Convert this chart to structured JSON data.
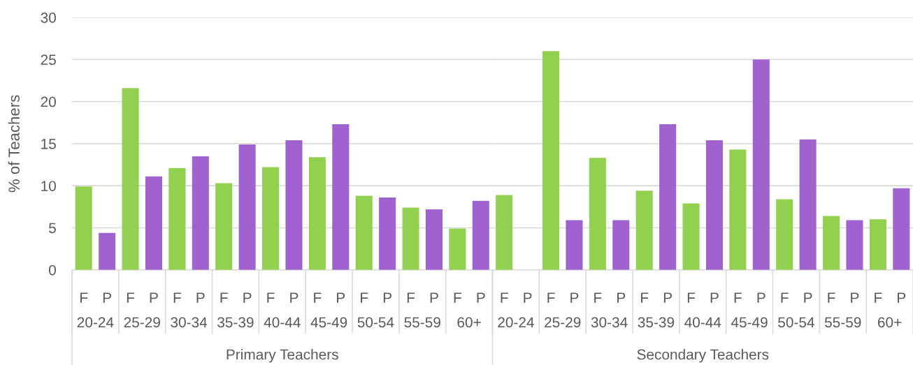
{
  "chart_data": [
    {
      "type": "bar",
      "ylabel": "% of Teachers",
      "xlabel": "Primary Teachers",
      "categories": [
        "20-24",
        "25-29",
        "30-34",
        "35-39",
        "40-44",
        "45-49",
        "50-54",
        "55-59",
        "60+"
      ],
      "series": [
        {
          "name": "F",
          "color": "#92d050",
          "values": [
            9.9,
            21.6,
            12.1,
            10.3,
            12.2,
            13.4,
            8.8,
            7.4,
            4.9
          ]
        },
        {
          "name": "P",
          "color": "#a062cf",
          "values": [
            4.4,
            11.1,
            13.5,
            14.9,
            15.4,
            17.3,
            8.6,
            7.2,
            8.2
          ]
        }
      ],
      "ylim": [
        0,
        30
      ],
      "yticks": [
        0,
        5,
        10,
        15,
        20,
        25,
        30
      ],
      "grid": "y"
    },
    {
      "type": "bar",
      "xlabel": "Secondary Teachers",
      "categories": [
        "20-24",
        "25-29",
        "30-34",
        "35-39",
        "40-44",
        "45-49",
        "50-54",
        "55-59",
        "60+"
      ],
      "series": [
        {
          "name": "F",
          "color": "#92d050",
          "values": [
            8.9,
            26.0,
            13.3,
            9.4,
            7.9,
            14.3,
            8.4,
            6.4,
            6.0
          ]
        },
        {
          "name": "P",
          "color": "#a062cf",
          "values": [
            null,
            5.9,
            5.9,
            17.3,
            15.4,
            25.0,
            15.5,
            5.9,
            9.7
          ]
        }
      ],
      "ylim": [
        0,
        30
      ],
      "yticks": [
        0,
        5,
        10,
        15,
        20,
        25,
        30
      ],
      "grid": "y",
      "tick_labels": "x"
    }
  ]
}
